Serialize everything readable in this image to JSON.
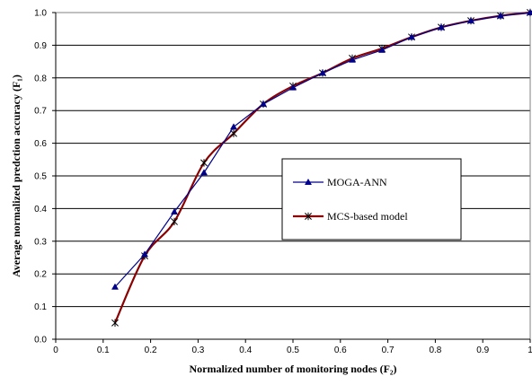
{
  "chart_data": {
    "type": "line",
    "xlabel": "Normalized number of monitoring nodes (F₂)",
    "ylabel": "Average normalized predction accuracy (F₁)",
    "xlim": [
      0,
      1
    ],
    "ylim": [
      0,
      1
    ],
    "x_ticks": [
      "0",
      "0.1",
      "0.2",
      "0.3",
      "0.4",
      "0.5",
      "0.6",
      "0.7",
      "0.8",
      "0.9",
      "1"
    ],
    "y_ticks": [
      "0.0",
      "0.1",
      "0.2",
      "0.3",
      "0.4",
      "0.5",
      "0.6",
      "0.7",
      "0.8",
      "0.9",
      "1.0"
    ],
    "grid": "horizontal",
    "legend_position": "center-right",
    "series": [
      {
        "name": "MOGA-ANN",
        "color": "#00008b",
        "marker": "triangle",
        "smooth": false,
        "x": [
          0.125,
          0.1875,
          0.25,
          0.3125,
          0.375,
          0.4375,
          0.5,
          0.5625,
          0.625,
          0.6875,
          0.75,
          0.8125,
          0.875,
          0.9375,
          1.0
        ],
        "y": [
          0.16,
          0.26,
          0.39,
          0.51,
          0.65,
          0.72,
          0.77,
          0.815,
          0.855,
          0.885,
          0.925,
          0.955,
          0.975,
          0.99,
          1.0
        ]
      },
      {
        "name": "MCS-based model",
        "color": "#8b0000",
        "marker": "asterisk",
        "smooth": true,
        "x": [
          0.125,
          0.1875,
          0.25,
          0.3125,
          0.375,
          0.4375,
          0.5,
          0.5625,
          0.625,
          0.6875,
          0.75,
          0.8125,
          0.875,
          0.9375,
          1.0
        ],
        "y": [
          0.05,
          0.255,
          0.36,
          0.54,
          0.63,
          0.72,
          0.775,
          0.815,
          0.86,
          0.89,
          0.925,
          0.955,
          0.975,
          0.99,
          1.0
        ]
      }
    ]
  }
}
